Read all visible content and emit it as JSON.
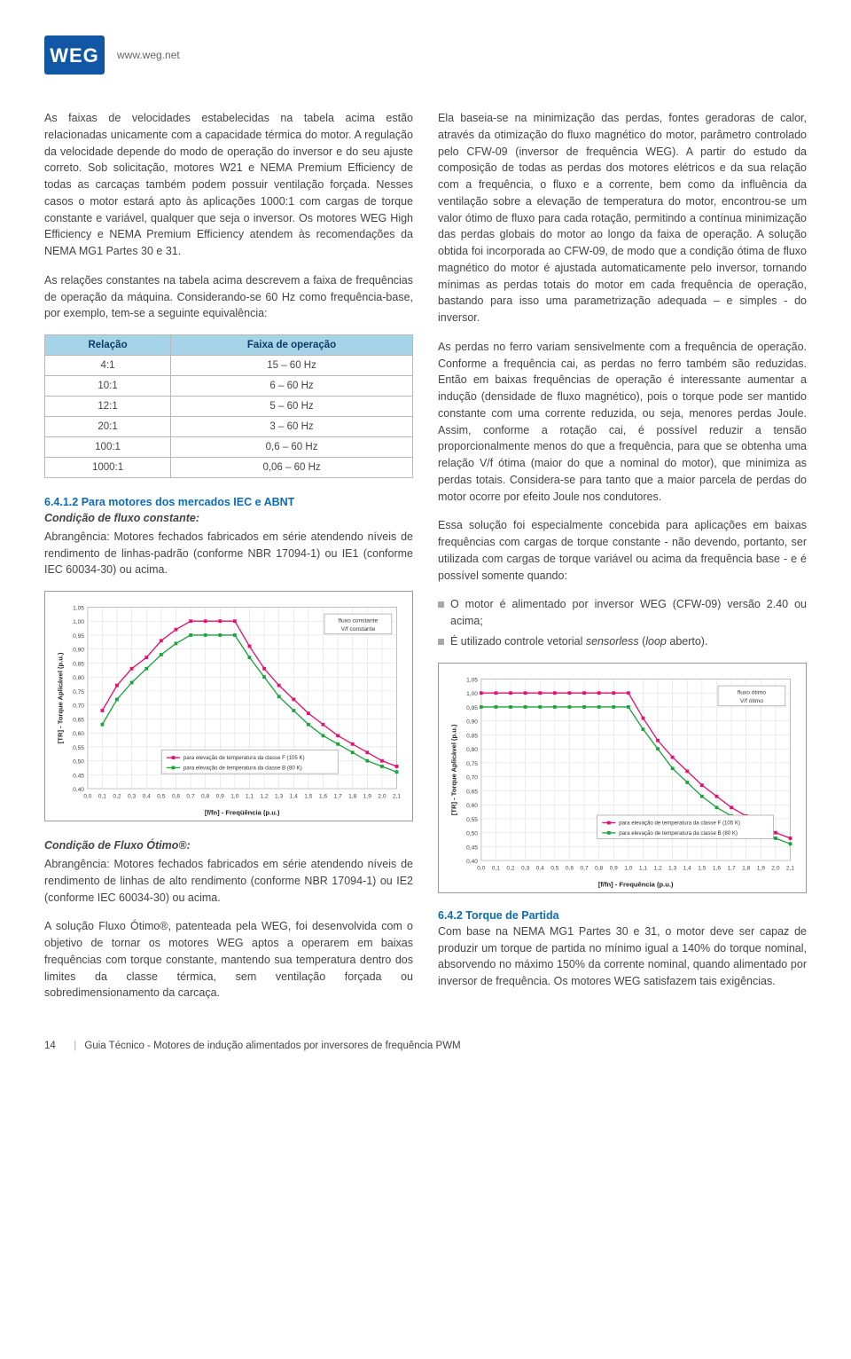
{
  "header": {
    "url": "www.weg.net"
  },
  "left": {
    "p1": "As faixas de velocidades estabelecidas na tabela acima estão relacionadas unicamente com a capacidade térmica do motor. A regulação da velocidade depende do modo de operação do inversor e do seu ajuste correto. Sob solicitação, motores W21 e NEMA Premium Efficiency de todas as carcaças também podem possuir ventilação forçada. Nesses casos o motor estará apto às aplicações 1000:1 com cargas de torque constante e variável, qualquer que seja o inversor. Os motores WEG High Efficiency e NEMA Premium Efficiency atendem às recomendações da NEMA MG1 Partes 30 e 31.",
    "p2": "As relações constantes na tabela acima descrevem a faixa de frequências de operação da máquina. Considerando-se 60 Hz como frequência-base, por exemplo, tem-se a seguinte equivalência:",
    "table": {
      "headers": [
        "Relação",
        "Faixa de operação"
      ],
      "rows": [
        [
          "4:1",
          "15 – 60 Hz"
        ],
        [
          "10:1",
          "6 – 60 Hz"
        ],
        [
          "12:1",
          "5 – 60 Hz"
        ],
        [
          "20:1",
          "3 – 60 Hz"
        ],
        [
          "100:1",
          "0,6 – 60 Hz"
        ],
        [
          "1000:1",
          "0,06 – 60 Hz"
        ]
      ]
    },
    "h1": "6.4.1.2 Para motores dos mercados IEC e ABNT",
    "h1sub": "Condição de fluxo constante:",
    "p3": "Abrangência: Motores fechados fabricados em série atendendo níveis de rendimento de linhas-padrão (conforme NBR 17094-1) ou IE1 (conforme IEC 60034-30) ou acima.",
    "h2sub": "Condição de Fluxo Ótimo®:",
    "p4": "Abrangência: Motores fechados fabricados em série atendendo níveis de rendimento de linhas de alto rendimento (conforme NBR 17094-1) ou IE2 (conforme IEC 60034-30) ou acima.",
    "p5": "A solução Fluxo Ótimo®, patenteada pela WEG, foi desenvolvida com o objetivo de tornar os motores WEG aptos a operarem em baixas frequências com torque constante, mantendo sua temperatura dentro dos limites da classe térmica, sem ventilação forçada ou sobredimensionamento da carcaça."
  },
  "right": {
    "p1": "Ela baseia-se na minimização das perdas, fontes geradoras de calor, através da otimização do fluxo magnético do motor, parâmetro controlado pelo CFW-09 (inversor de frequência WEG). A partir do estudo da composição de todas as perdas dos motores elétricos e da sua relação com a frequência, o fluxo e a corrente, bem como da influência da ventilação sobre a elevação de temperatura do motor, encontrou-se um valor ótimo de fluxo para cada rotação, permitindo a contínua minimização das perdas globais do motor ao longo da faixa de operação. A solução obtida foi incorporada ao CFW-09, de modo que a condição ótima de fluxo magnético do motor é ajustada automaticamente pelo inversor, tornando mínimas as perdas totais do motor em cada frequência de operação, bastando para isso uma parametrização adequada – e simples - do inversor.",
    "p2": "As perdas no ferro variam sensivelmente com a frequência de operação. Conforme a frequência cai, as perdas no ferro também são reduzidas. Então em baixas frequências de operação é interessante aumentar a indução (densidade de fluxo magnético), pois o torque pode ser mantido constante com uma corrente reduzida, ou seja, menores perdas Joule. Assim, conforme a rotação cai, é possível reduzir a tensão proporcionalmente menos do que a frequência, para que se obtenha uma relação V/f ótima (maior do que a nominal do motor), que minimiza as perdas totais. Considera-se para tanto que a maior parcela de perdas do motor ocorre por efeito Joule nos condutores.",
    "p3": "Essa solução foi especialmente concebida para aplicações em baixas frequências com cargas de torque constante - não devendo, portanto, ser utilizada com cargas de torque variável ou acima da frequência base - e é possível somente quando:",
    "bul1": "O motor é alimentado por inversor WEG (CFW-09) versão 2.40 ou acima;",
    "bul2": "É utilizado controle vetorial sensorless (loop aberto).",
    "h": "6.4.2 Torque de Partida",
    "p4": "Com base na NEMA MG1 Partes 30 e 31, o motor deve ser capaz de produzir um torque de partida no mínimo igual a 140% do torque nominal, absorvendo no máximo 150% da corrente nominal, quando alimentado por inversor de frequência. Os motores WEG satisfazem tais exigências."
  },
  "chart1": {
    "ylabel": "[TR] - Torque Aplicável (p.u.)",
    "xlabel": "[f/fn] - Freqüência (p.u.)",
    "legend_box": {
      "l1": "fluxo constante",
      "l2": "V/f constante"
    },
    "legend": {
      "a": "para elevação de temperatura da classe F (105 K)",
      "b": "para elevação de temperatura da classe B (80 K)"
    },
    "xticks": [
      "0,0",
      "0,1",
      "0,2",
      "0,3",
      "0,4",
      "0,5",
      "0,6",
      "0,7",
      "0,8",
      "0,9",
      "1,0",
      "1,1",
      "1,2",
      "1,3",
      "1,4",
      "1,5",
      "1,6",
      "1,7",
      "1,8",
      "1,9",
      "2,0",
      "2,1"
    ],
    "yticks": [
      "0,40",
      "0,45",
      "0,50",
      "0,55",
      "0,60",
      "0,65",
      "0,70",
      "0,75",
      "0,80",
      "0,85",
      "0,90",
      "0,95",
      "1,00",
      "1,05"
    ],
    "ylim": [
      0.4,
      1.05
    ],
    "xlim": [
      0.0,
      2.1
    ],
    "colors": {
      "grid": "#d8d8d8",
      "axis": "#888",
      "s1": "#e40f6e",
      "s2": "#1aa33a",
      "bg": "#ffffff"
    },
    "series1": [
      [
        0.1,
        0.68
      ],
      [
        0.2,
        0.77
      ],
      [
        0.3,
        0.83
      ],
      [
        0.4,
        0.87
      ],
      [
        0.5,
        0.93
      ],
      [
        0.6,
        0.97
      ],
      [
        0.7,
        1.0
      ],
      [
        0.8,
        1.0
      ],
      [
        0.9,
        1.0
      ],
      [
        1.0,
        1.0
      ],
      [
        1.1,
        0.91
      ],
      [
        1.2,
        0.83
      ],
      [
        1.3,
        0.77
      ],
      [
        1.4,
        0.72
      ],
      [
        1.5,
        0.67
      ],
      [
        1.6,
        0.63
      ],
      [
        1.7,
        0.59
      ],
      [
        1.8,
        0.56
      ],
      [
        1.9,
        0.53
      ],
      [
        2.0,
        0.5
      ],
      [
        2.1,
        0.48
      ]
    ],
    "series2": [
      [
        0.1,
        0.63
      ],
      [
        0.2,
        0.72
      ],
      [
        0.3,
        0.78
      ],
      [
        0.4,
        0.83
      ],
      [
        0.5,
        0.88
      ],
      [
        0.6,
        0.92
      ],
      [
        0.7,
        0.95
      ],
      [
        0.8,
        0.95
      ],
      [
        0.9,
        0.95
      ],
      [
        1.0,
        0.95
      ],
      [
        1.1,
        0.87
      ],
      [
        1.2,
        0.8
      ],
      [
        1.3,
        0.73
      ],
      [
        1.4,
        0.68
      ],
      [
        1.5,
        0.63
      ],
      [
        1.6,
        0.59
      ],
      [
        1.7,
        0.56
      ],
      [
        1.8,
        0.53
      ],
      [
        1.9,
        0.5
      ],
      [
        2.0,
        0.48
      ],
      [
        2.1,
        0.46
      ]
    ]
  },
  "chart2": {
    "ylabel": "[TR] - Torque Aplicável (p.u.)",
    "xlabel": "[f/fn] - Frequência (p.u.)",
    "legend_box": {
      "l1": "fluxo ótimo",
      "l2": "V/f ótimo"
    },
    "legend": {
      "a": "para elevação de temperatura da classe F (105 K)",
      "b": "para elevação de temperatura da classe B (80 K)"
    },
    "xticks": [
      "0,0",
      "0,1",
      "0,2",
      "0,3",
      "0,4",
      "0,5",
      "0,6",
      "0,7",
      "0,8",
      "0,9",
      "1,0",
      "1,1",
      "1,2",
      "1,3",
      "1,4",
      "1,5",
      "1,6",
      "1,7",
      "1,8",
      "1,9",
      "2,0",
      "2,1"
    ],
    "yticks": [
      "0,40",
      "0,45",
      "0,50",
      "0,55",
      "0,60",
      "0,65",
      "0,70",
      "0,75",
      "0,80",
      "0,85",
      "0,90",
      "0,95",
      "1,00",
      "1,05"
    ],
    "ylim": [
      0.4,
      1.05
    ],
    "xlim": [
      0.0,
      2.1
    ],
    "colors": {
      "grid": "#d8d8d8",
      "axis": "#888",
      "s1": "#e40f6e",
      "s2": "#1aa33a",
      "bg": "#ffffff"
    },
    "series1": [
      [
        0.0,
        1.0
      ],
      [
        0.1,
        1.0
      ],
      [
        0.2,
        1.0
      ],
      [
        0.3,
        1.0
      ],
      [
        0.4,
        1.0
      ],
      [
        0.5,
        1.0
      ],
      [
        0.6,
        1.0
      ],
      [
        0.7,
        1.0
      ],
      [
        0.8,
        1.0
      ],
      [
        0.9,
        1.0
      ],
      [
        1.0,
        1.0
      ],
      [
        1.1,
        0.91
      ],
      [
        1.2,
        0.83
      ],
      [
        1.3,
        0.77
      ],
      [
        1.4,
        0.72
      ],
      [
        1.5,
        0.67
      ],
      [
        1.6,
        0.63
      ],
      [
        1.7,
        0.59
      ],
      [
        1.8,
        0.56
      ],
      [
        1.9,
        0.53
      ],
      [
        2.0,
        0.5
      ],
      [
        2.1,
        0.48
      ]
    ],
    "series2": [
      [
        0.0,
        0.95
      ],
      [
        0.1,
        0.95
      ],
      [
        0.2,
        0.95
      ],
      [
        0.3,
        0.95
      ],
      [
        0.4,
        0.95
      ],
      [
        0.5,
        0.95
      ],
      [
        0.6,
        0.95
      ],
      [
        0.7,
        0.95
      ],
      [
        0.8,
        0.95
      ],
      [
        0.9,
        0.95
      ],
      [
        1.0,
        0.95
      ],
      [
        1.1,
        0.87
      ],
      [
        1.2,
        0.8
      ],
      [
        1.3,
        0.73
      ],
      [
        1.4,
        0.68
      ],
      [
        1.5,
        0.63
      ],
      [
        1.6,
        0.59
      ],
      [
        1.7,
        0.56
      ],
      [
        1.8,
        0.53
      ],
      [
        1.9,
        0.5
      ],
      [
        2.0,
        0.48
      ],
      [
        2.1,
        0.46
      ]
    ]
  },
  "footer": {
    "page": "14",
    "title": "Guia Técnico - Motores de indução alimentados por inversores de frequência PWM"
  }
}
